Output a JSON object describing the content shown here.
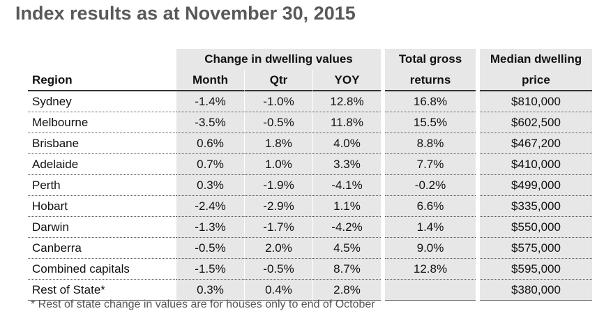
{
  "title": "Index results as at November 30, 2015",
  "header": {
    "group": "Change in dwelling values",
    "region": "Region",
    "month": "Month",
    "qtr": "Qtr",
    "yoy": "YOY",
    "total_line1": "Total gross",
    "total_line2": "returns",
    "median_line1": "Median dwelling",
    "median_line2": "price"
  },
  "rows": [
    {
      "region": "Sydney",
      "month": "-1.4%",
      "qtr": "-1.0%",
      "yoy": "12.8%",
      "total": "16.8%",
      "median": "$810,000"
    },
    {
      "region": "Melbourne",
      "month": "-3.5%",
      "qtr": "-0.5%",
      "yoy": "11.8%",
      "total": "15.5%",
      "median": "$602,500"
    },
    {
      "region": "Brisbane",
      "month": "0.6%",
      "qtr": "1.8%",
      "yoy": "4.0%",
      "total": "8.8%",
      "median": "$467,200"
    },
    {
      "region": "Adelaide",
      "month": "0.7%",
      "qtr": "1.0%",
      "yoy": "3.3%",
      "total": "7.7%",
      "median": "$410,000"
    },
    {
      "region": "Perth",
      "month": "0.3%",
      "qtr": "-1.9%",
      "yoy": "-4.1%",
      "total": "-0.2%",
      "median": "$499,000"
    },
    {
      "region": "Hobart",
      "month": "-2.4%",
      "qtr": "-2.9%",
      "yoy": "1.1%",
      "total": "6.6%",
      "median": "$335,000"
    },
    {
      "region": "Darwin",
      "month": "-1.3%",
      "qtr": "-1.7%",
      "yoy": "-4.2%",
      "total": "1.4%",
      "median": "$550,000"
    },
    {
      "region": "Canberra",
      "month": "-0.5%",
      "qtr": "2.0%",
      "yoy": "4.5%",
      "total": "9.0%",
      "median": "$575,000"
    },
    {
      "region": "Combined capitals",
      "month": "-1.5%",
      "qtr": "-0.5%",
      "yoy": "8.7%",
      "total": "12.8%",
      "median": "$595,000"
    },
    {
      "region": "Rest of State*",
      "month": "0.3%",
      "qtr": "0.4%",
      "yoy": "2.8%",
      "total": "",
      "median": "$380,000"
    }
  ],
  "footnote": "* Rest of state change in values are for houses only to end of October",
  "colors": {
    "title": "#595959",
    "shade": "#e7e7e7",
    "footnote": "#555555"
  }
}
